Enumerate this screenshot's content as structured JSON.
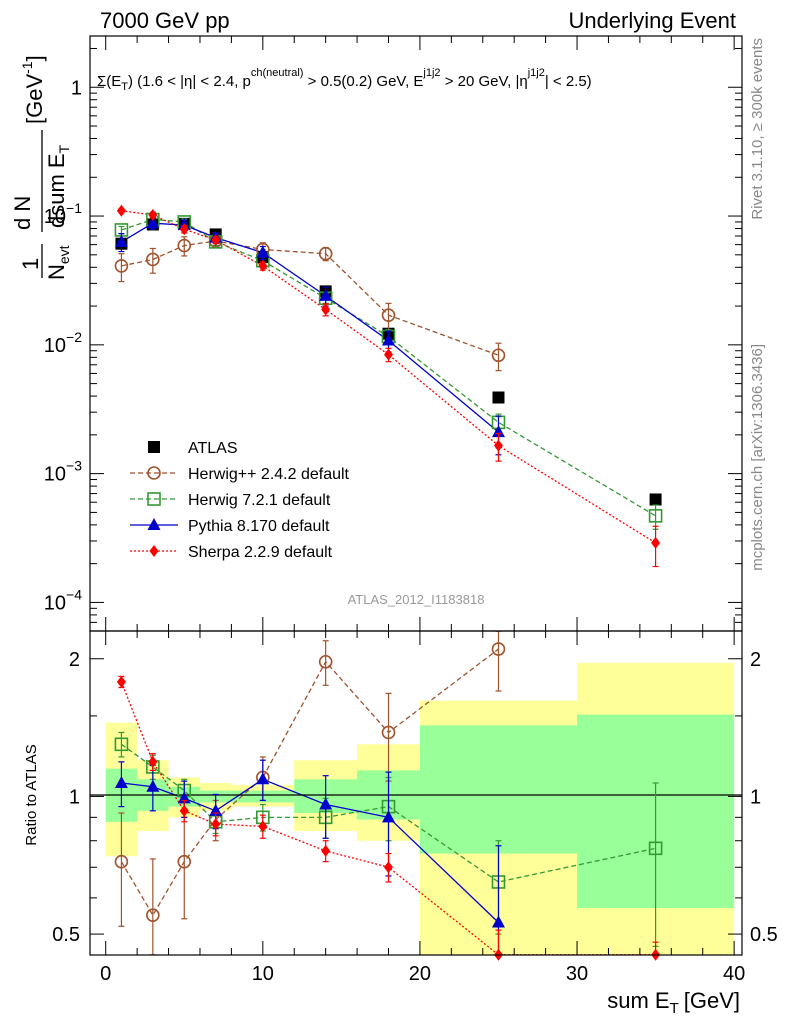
{
  "header": {
    "left": "7000 GeV pp",
    "right": "Underlying Event",
    "rivet": "Rivet 3.1.10, ≥ 300k events",
    "mcplots": "mcplots.cern.ch [arXiv:1306.3436]",
    "analysis": "ATLAS_2012_I1183818"
  },
  "observable": {
    "sigma": "Σ(E",
    "sub_T": "T",
    "p1": ") (1.6 < |η| < 2.4, p",
    "sup_ch": "ch(neutral)",
    "p2": " > 0.5(0.2) GeV, E",
    "sup_j": "j1j2",
    "p3": " > 20 GeV, |η",
    "p4": "| < 2.5)"
  },
  "axes": {
    "y_main": {
      "one": "1",
      "n": "N",
      "evt": "evt",
      "numer": "d N",
      "denom": "dsum E",
      "sub_T": "T",
      "unit": "[GeV",
      "unit_sup": "-1",
      "unit_close": "]"
    },
    "y_ratio": "Ratio to ATLAS",
    "x": {
      "label": "sum E",
      "sub": "T",
      "unit": "[GeV]"
    },
    "x_ticks": [
      "0",
      "10",
      "20",
      "30",
      "40"
    ],
    "main_ticks": [
      {
        "m": "1",
        "e": ""
      },
      {
        "m": "10",
        "e": "−1"
      },
      {
        "m": "10",
        "e": "−2"
      },
      {
        "m": "10",
        "e": "−3"
      },
      {
        "m": "10",
        "e": "−4"
      }
    ],
    "ratio_ticks": [
      "0.5",
      "1",
      "2"
    ]
  },
  "chart_data": {
    "type": "scatter",
    "log_y": true,
    "x_range": [
      -1,
      40.5
    ],
    "y_range_main": [
      6e-05,
      2.5
    ],
    "y_range_ratio": [
      0.45,
      2.3
    ],
    "bins": [
      {
        "lo": 0,
        "hi": 2
      },
      {
        "lo": 2,
        "hi": 4
      },
      {
        "lo": 4,
        "hi": 6
      },
      {
        "lo": 6,
        "hi": 8
      },
      {
        "lo": 8,
        "hi": 12
      },
      {
        "lo": 12,
        "hi": 16
      },
      {
        "lo": 16,
        "hi": 20
      },
      {
        "lo": 20,
        "hi": 30
      },
      {
        "lo": 30,
        "hi": 40
      }
    ],
    "band_yellow": [
      [
        0.74,
        1.45
      ],
      [
        0.84,
        1.2
      ],
      [
        0.9,
        1.1
      ],
      [
        0.93,
        1.07
      ],
      [
        0.95,
        1.06
      ],
      [
        0.84,
        1.2
      ],
      [
        0.8,
        1.3
      ],
      [
        0.38,
        1.62
      ],
      [
        0.38,
        1.96
      ]
    ],
    "band_green": [
      [
        0.88,
        1.15
      ],
      [
        0.93,
        1.09
      ],
      [
        0.95,
        1.05
      ],
      [
        0.97,
        1.03
      ],
      [
        0.97,
        1.03
      ],
      [
        0.92,
        1.09
      ],
      [
        0.89,
        1.14
      ],
      [
        0.75,
        1.43
      ],
      [
        0.57,
        1.51
      ]
    ],
    "series": [
      {
        "name": "ATLAS",
        "color": "#000000",
        "marker": "square-filled",
        "line": "none",
        "x": [
          1,
          3,
          5,
          7,
          10,
          14,
          18,
          25,
          35
        ],
        "y": [
          0.061,
          0.086,
          0.087,
          0.072,
          0.048,
          0.026,
          0.0122,
          0.0039,
          0.00063
        ]
      },
      {
        "name": "Herwig++ 2.4.2 default",
        "color": "#a0522d",
        "marker": "circle-open",
        "line": "dashed",
        "x": [
          1,
          3,
          5,
          7,
          10,
          14,
          18,
          25
        ],
        "y": [
          0.041,
          0.046,
          0.059,
          0.064,
          0.055,
          0.051,
          0.017,
          0.0083
        ],
        "yerr": [
          0.01,
          0.01,
          0.01,
          0.007,
          0.007,
          0.006,
          0.004,
          0.002
        ],
        "ratio": [
          0.72,
          0.55,
          0.72,
          0.89,
          1.1,
          1.97,
          1.38,
          2.1
        ],
        "ratio_err": [
          0.2,
          0.18,
          0.18,
          0.09,
          0.12,
          0.22,
          0.3,
          0.4
        ]
      },
      {
        "name": "Herwig 7.2.1 default",
        "color": "#339933",
        "marker": "square-open",
        "line": "dashed",
        "x": [
          1,
          3,
          5,
          7,
          10,
          14,
          18,
          25,
          35
        ],
        "y": [
          0.078,
          0.094,
          0.09,
          0.063,
          0.045,
          0.023,
          0.0116,
          0.0025,
          0.00047
        ],
        "yerr": [
          0.005,
          0.005,
          0.005,
          0.004,
          0.004,
          0.002,
          0.0015,
          0.0004,
          0.0001
        ],
        "ratio": [
          1.3,
          1.16,
          1.03,
          0.88,
          0.9,
          0.9,
          0.95,
          0.65,
          0.77
        ],
        "ratio_err": [
          0.08,
          0.07,
          0.06,
          0.05,
          0.06,
          0.09,
          0.15,
          0.15,
          0.3
        ]
      },
      {
        "name": "Pythia 8.170 default",
        "color": "#0000cc",
        "marker": "triangle-filled",
        "line": "solid",
        "x": [
          1,
          3,
          5,
          7,
          10,
          14,
          18,
          25
        ],
        "y": [
          0.063,
          0.088,
          0.085,
          0.068,
          0.052,
          0.024,
          0.0108,
          0.0021
        ],
        "yerr": [
          0.01,
          0.009,
          0.008,
          0.006,
          0.006,
          0.004,
          0.002,
          0.0007
        ],
        "ratio": [
          1.07,
          1.05,
          0.99,
          0.93,
          1.09,
          0.96,
          0.9,
          0.53
        ],
        "ratio_err": [
          0.12,
          0.12,
          0.09,
          0.08,
          0.11,
          0.15,
          0.23,
          0.25
        ]
      },
      {
        "name": "Sherpa 2.2.9 default",
        "color": "#ff0000",
        "marker": "diamond-filled",
        "line": "dotted",
        "x": [
          1,
          3,
          5,
          7,
          10,
          14,
          18,
          25,
          35
        ],
        "y": [
          0.11,
          0.102,
          0.079,
          0.065,
          0.041,
          0.0188,
          0.0084,
          0.00165,
          0.00029
        ],
        "yerr": [
          0.004,
          0.005,
          0.005,
          0.004,
          0.003,
          0.002,
          0.001,
          0.0004,
          0.0001
        ],
        "ratio": [
          1.78,
          1.19,
          0.93,
          0.87,
          0.86,
          0.76,
          0.7,
          0.39,
          0.42
        ],
        "ratio_err": [
          0.05,
          0.05,
          0.05,
          0.05,
          0.05,
          0.04,
          0.05,
          0.12,
          0.06
        ]
      }
    ]
  }
}
